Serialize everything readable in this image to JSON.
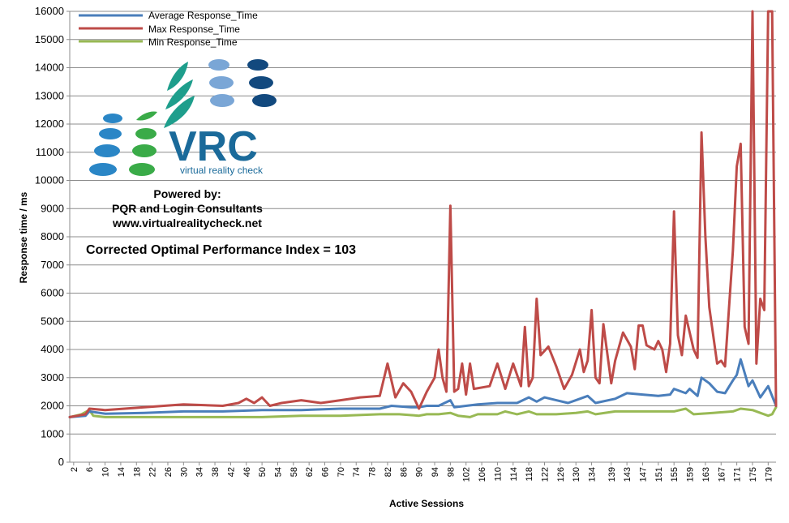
{
  "chart_data": {
    "type": "line",
    "xlabel": "Active Sessions",
    "ylabel": "Response time / ms",
    "ylim": [
      0,
      16000
    ],
    "yticks": [
      0,
      1000,
      2000,
      3000,
      4000,
      5000,
      6000,
      7000,
      8000,
      9000,
      10000,
      11000,
      12000,
      13000,
      14000,
      15000,
      16000
    ],
    "xlim": [
      1,
      181
    ],
    "xticks": [
      2,
      6,
      10,
      14,
      18,
      22,
      26,
      30,
      34,
      38,
      42,
      46,
      50,
      54,
      58,
      62,
      66,
      70,
      74,
      78,
      82,
      86,
      90,
      94,
      98,
      102,
      106,
      110,
      114,
      118,
      122,
      126,
      130,
      134,
      139,
      143,
      147,
      151,
      155,
      159,
      163,
      167,
      171,
      175,
      179
    ],
    "grid": true,
    "legend_position": "top-left",
    "annotation": "Corrected Optimal Performance Index = 103",
    "series": [
      {
        "name": "Average Response_Time",
        "color": "#4a7ebb",
        "points": [
          [
            1,
            1600
          ],
          [
            5,
            1650
          ],
          [
            6,
            1800
          ],
          [
            10,
            1720
          ],
          [
            20,
            1750
          ],
          [
            30,
            1800
          ],
          [
            40,
            1800
          ],
          [
            50,
            1850
          ],
          [
            60,
            1850
          ],
          [
            70,
            1900
          ],
          [
            80,
            1900
          ],
          [
            83,
            2000
          ],
          [
            88,
            1950
          ],
          [
            90,
            1950
          ],
          [
            92,
            2000
          ],
          [
            95,
            2000
          ],
          [
            98,
            2200
          ],
          [
            99,
            1950
          ],
          [
            105,
            2050
          ],
          [
            110,
            2100
          ],
          [
            115,
            2100
          ],
          [
            118,
            2300
          ],
          [
            120,
            2150
          ],
          [
            122,
            2300
          ],
          [
            125,
            2200
          ],
          [
            128,
            2100
          ],
          [
            130,
            2200
          ],
          [
            133,
            2350
          ],
          [
            135,
            2100
          ],
          [
            140,
            2250
          ],
          [
            143,
            2450
          ],
          [
            147,
            2400
          ],
          [
            151,
            2350
          ],
          [
            154,
            2400
          ],
          [
            155,
            2600
          ],
          [
            158,
            2450
          ],
          [
            159,
            2600
          ],
          [
            161,
            2350
          ],
          [
            162,
            3000
          ],
          [
            164,
            2800
          ],
          [
            166,
            2500
          ],
          [
            168,
            2450
          ],
          [
            170,
            2900
          ],
          [
            171,
            3100
          ],
          [
            172,
            3650
          ],
          [
            174,
            2700
          ],
          [
            175,
            2900
          ],
          [
            177,
            2300
          ],
          [
            179,
            2700
          ],
          [
            181,
            2000
          ]
        ]
      },
      {
        "name": "Max Response_Time",
        "color": "#be4b48",
        "points": [
          [
            1,
            1600
          ],
          [
            3,
            1650
          ],
          [
            5,
            1700
          ],
          [
            6,
            1900
          ],
          [
            10,
            1850
          ],
          [
            15,
            1900
          ],
          [
            20,
            1950
          ],
          [
            25,
            2000
          ],
          [
            30,
            2050
          ],
          [
            40,
            2000
          ],
          [
            44,
            2100
          ],
          [
            46,
            2250
          ],
          [
            48,
            2100
          ],
          [
            50,
            2300
          ],
          [
            52,
            2000
          ],
          [
            55,
            2100
          ],
          [
            60,
            2200
          ],
          [
            65,
            2100
          ],
          [
            70,
            2200
          ],
          [
            75,
            2300
          ],
          [
            80,
            2350
          ],
          [
            82,
            3500
          ],
          [
            84,
            2300
          ],
          [
            86,
            2800
          ],
          [
            88,
            2500
          ],
          [
            90,
            1900
          ],
          [
            92,
            2500
          ],
          [
            94,
            3000
          ],
          [
            95,
            4000
          ],
          [
            96,
            3000
          ],
          [
            97,
            2500
          ],
          [
            98,
            9100
          ],
          [
            99,
            2500
          ],
          [
            100,
            2600
          ],
          [
            101,
            3500
          ],
          [
            102,
            2400
          ],
          [
            103,
            3500
          ],
          [
            104,
            2600
          ],
          [
            108,
            2700
          ],
          [
            110,
            3500
          ],
          [
            112,
            2600
          ],
          [
            114,
            3500
          ],
          [
            116,
            2700
          ],
          [
            117,
            4800
          ],
          [
            118,
            2700
          ],
          [
            119,
            3000
          ],
          [
            120,
            5800
          ],
          [
            121,
            3800
          ],
          [
            123,
            4100
          ],
          [
            125,
            3400
          ],
          [
            127,
            2600
          ],
          [
            129,
            3100
          ],
          [
            131,
            4000
          ],
          [
            132,
            3200
          ],
          [
            133,
            3600
          ],
          [
            134,
            5400
          ],
          [
            135,
            3000
          ],
          [
            136,
            2800
          ],
          [
            137,
            4900
          ],
          [
            139,
            2800
          ],
          [
            140,
            3600
          ],
          [
            142,
            4600
          ],
          [
            144,
            4100
          ],
          [
            145,
            3300
          ],
          [
            146,
            4850
          ],
          [
            147,
            4850
          ],
          [
            148,
            4150
          ],
          [
            150,
            4000
          ],
          [
            151,
            4300
          ],
          [
            152,
            4000
          ],
          [
            153,
            3200
          ],
          [
            154,
            4200
          ],
          [
            155,
            8900
          ],
          [
            156,
            4500
          ],
          [
            157,
            3800
          ],
          [
            158,
            5200
          ],
          [
            160,
            4000
          ],
          [
            161,
            3700
          ],
          [
            162,
            11700
          ],
          [
            163,
            8000
          ],
          [
            164,
            5500
          ],
          [
            166,
            3500
          ],
          [
            167,
            3600
          ],
          [
            168,
            3400
          ],
          [
            170,
            7500
          ],
          [
            171,
            10500
          ],
          [
            172,
            11300
          ],
          [
            173,
            4800
          ],
          [
            174,
            4200
          ],
          [
            175,
            16000
          ],
          [
            176,
            3500
          ],
          [
            177,
            5800
          ],
          [
            178,
            5400
          ],
          [
            179,
            16000
          ],
          [
            180,
            16000
          ],
          [
            181,
            2000
          ]
        ]
      },
      {
        "name": "Min Response_Time",
        "color": "#98b954",
        "points": [
          [
            1,
            1600
          ],
          [
            4,
            1700
          ],
          [
            6,
            1850
          ],
          [
            7,
            1650
          ],
          [
            10,
            1600
          ],
          [
            20,
            1600
          ],
          [
            30,
            1600
          ],
          [
            40,
            1600
          ],
          [
            50,
            1600
          ],
          [
            60,
            1650
          ],
          [
            70,
            1650
          ],
          [
            80,
            1700
          ],
          [
            85,
            1700
          ],
          [
            90,
            1650
          ],
          [
            92,
            1700
          ],
          [
            95,
            1700
          ],
          [
            98,
            1750
          ],
          [
            100,
            1650
          ],
          [
            103,
            1600
          ],
          [
            105,
            1700
          ],
          [
            110,
            1700
          ],
          [
            112,
            1800
          ],
          [
            115,
            1700
          ],
          [
            118,
            1800
          ],
          [
            120,
            1700
          ],
          [
            125,
            1700
          ],
          [
            130,
            1750
          ],
          [
            133,
            1800
          ],
          [
            135,
            1700
          ],
          [
            140,
            1800
          ],
          [
            145,
            1800
          ],
          [
            150,
            1800
          ],
          [
            155,
            1800
          ],
          [
            158,
            1900
          ],
          [
            160,
            1700
          ],
          [
            165,
            1750
          ],
          [
            170,
            1800
          ],
          [
            172,
            1900
          ],
          [
            175,
            1850
          ],
          [
            177,
            1750
          ],
          [
            179,
            1650
          ],
          [
            180,
            1700
          ],
          [
            181,
            1950
          ]
        ]
      }
    ]
  },
  "logo": {
    "brand": "VRC",
    "tagline": "virtual reality check",
    "powered_by": "Powered by:",
    "company": "PQR and Login Consultants",
    "website": "www.virtualrealitycheck.net"
  }
}
